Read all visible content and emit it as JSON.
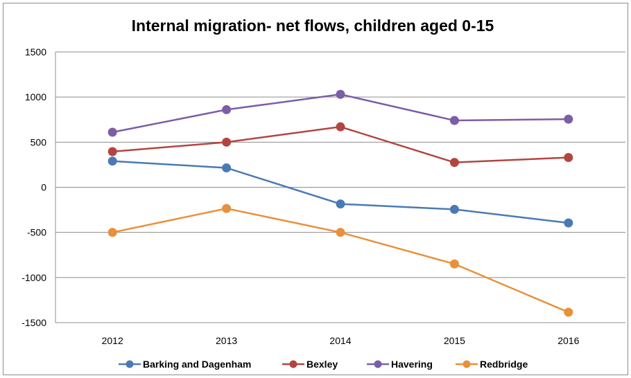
{
  "chart_data": {
    "type": "line",
    "title": "Internal migration- net flows, children aged 0-15",
    "xlabel": "",
    "ylabel": "",
    "categories": [
      "2012",
      "2013",
      "2014",
      "2015",
      "2016"
    ],
    "ylim": [
      -1500,
      1500
    ],
    "yticks": [
      "1500",
      "1000",
      "500",
      "0",
      "-500",
      "-1000",
      "-1500"
    ],
    "grid": true,
    "legend_position": "bottom",
    "series": [
      {
        "name": "Barking and Dagenham",
        "color": "#4a7ab5",
        "values": [
          290,
          215,
          -185,
          -245,
          -395
        ]
      },
      {
        "name": "Bexley",
        "color": "#b34540",
        "values": [
          395,
          500,
          670,
          275,
          330
        ]
      },
      {
        "name": "Havering",
        "color": "#7b5ea6",
        "values": [
          610,
          860,
          1030,
          740,
          755
        ]
      },
      {
        "name": "Redbridge",
        "color": "#e8903b",
        "values": [
          -500,
          -235,
          -500,
          -850,
          -1385
        ]
      }
    ]
  }
}
